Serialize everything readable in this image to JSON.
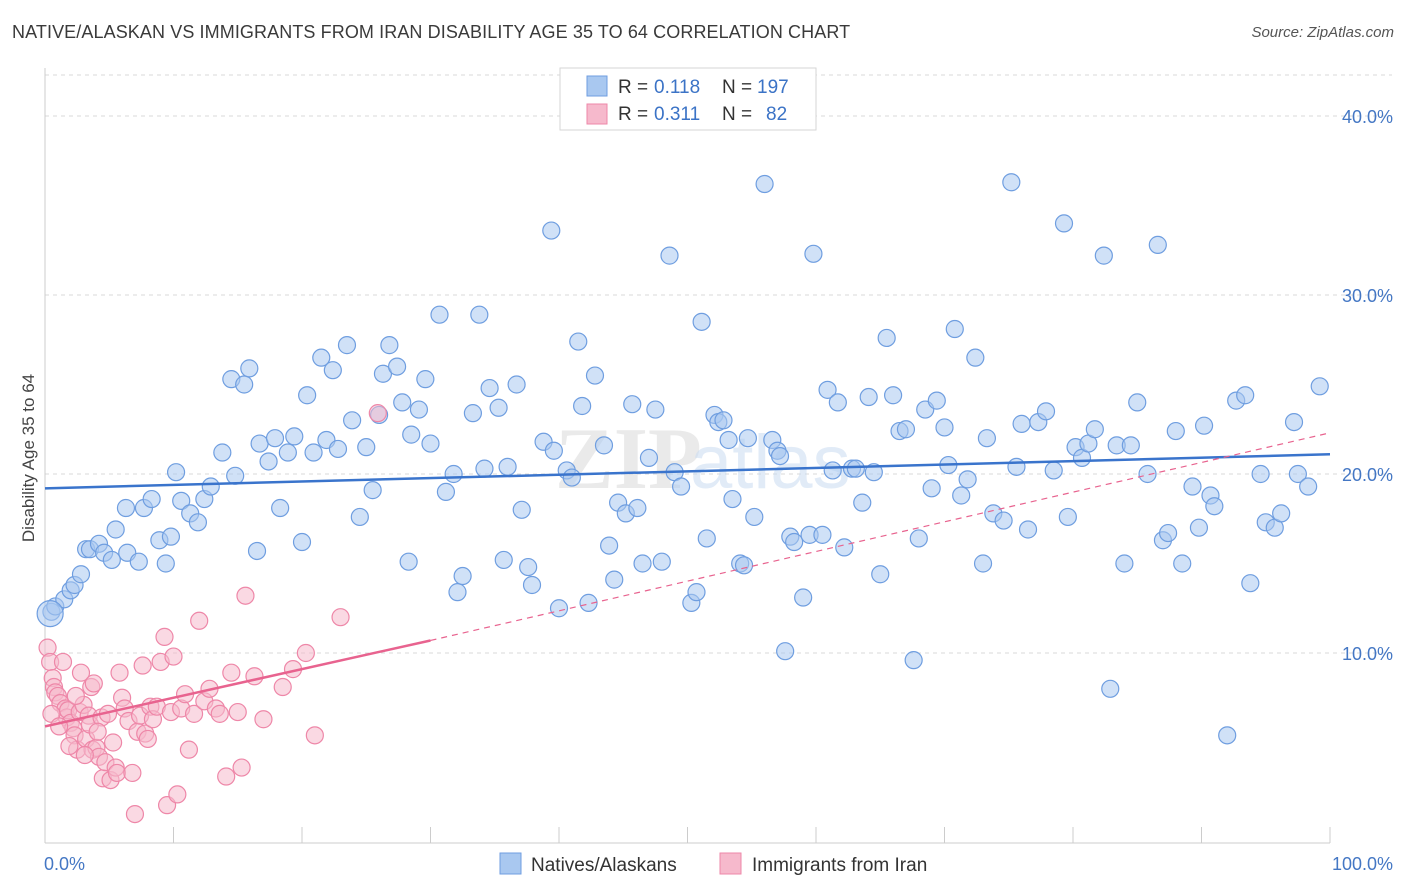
{
  "title": "NATIVE/ALASKAN VS IMMIGRANTS FROM IRAN DISABILITY AGE 35 TO 64 CORRELATION CHART",
  "source": "Source: ZipAtlas.com",
  "watermark": "ZIPatlas",
  "legend": {
    "rows": [
      {
        "r_label": "R = ",
        "r_value": "0.118",
        "n_label": "N = ",
        "n_value": "197"
      },
      {
        "r_label": "R = ",
        "r_value": "0.311",
        "n_label": "N = ",
        "n_value": "82"
      }
    ]
  },
  "chart_data": {
    "type": "scatter",
    "title": "NATIVE/ALASKAN VS IMMIGRANTS FROM IRAN DISABILITY AGE 35 TO 64 CORRELATION CHART",
    "xlabel": "",
    "ylabel": "Disability Age 35 to 64",
    "xlim": [
      0,
      100
    ],
    "ylim": [
      0,
      42
    ],
    "x_tick_labels": [
      "0.0%",
      "100.0%"
    ],
    "y_ticks": [
      10,
      20,
      30,
      40
    ],
    "y_tick_labels": [
      "10.0%",
      "20.0%",
      "30.0%",
      "40.0%"
    ],
    "grid": true,
    "legend_position": "top-center",
    "colors": {
      "natives_fill": "#a9c8f0",
      "natives_stroke": "#6f9ee0",
      "natives_line": "#3a74cc",
      "iran_fill": "#f6b9cc",
      "iran_stroke": "#ee87a8",
      "iran_line": "#e8638f",
      "grid": "#d8d8d8",
      "tick_text": "#4477c4"
    },
    "series": [
      {
        "name": "Natives/Alaskans",
        "r": 0.118,
        "n": 197,
        "trend": {
          "x": [
            0,
            100
          ],
          "y": [
            19.2,
            21.1
          ],
          "dashed": false
        },
        "points": [
          [
            0.5,
            12.3
          ],
          [
            0.8,
            12.6
          ],
          [
            1.5,
            13.0
          ],
          [
            2.0,
            13.5
          ],
          [
            2.3,
            13.8
          ],
          [
            2.8,
            14.4
          ],
          [
            3.2,
            15.8
          ],
          [
            3.5,
            15.8
          ],
          [
            4.2,
            16.1
          ],
          [
            4.6,
            15.6
          ],
          [
            5.2,
            15.2
          ],
          [
            5.5,
            16.9
          ],
          [
            6.3,
            18.1
          ],
          [
            6.4,
            15.6
          ],
          [
            7.3,
            15.1
          ],
          [
            7.7,
            18.1
          ],
          [
            8.3,
            18.6
          ],
          [
            8.9,
            16.3
          ],
          [
            9.4,
            15.0
          ],
          [
            9.8,
            16.5
          ],
          [
            10.2,
            20.1
          ],
          [
            10.6,
            18.5
          ],
          [
            11.3,
            17.8
          ],
          [
            11.9,
            17.3
          ],
          [
            12.4,
            18.6
          ],
          [
            12.9,
            19.3
          ],
          [
            13.8,
            21.2
          ],
          [
            14.5,
            25.3
          ],
          [
            14.8,
            19.9
          ],
          [
            15.5,
            25.0
          ],
          [
            15.9,
            25.9
          ],
          [
            16.5,
            15.7
          ],
          [
            16.7,
            21.7
          ],
          [
            17.4,
            20.7
          ],
          [
            17.9,
            22.0
          ],
          [
            18.3,
            18.1
          ],
          [
            18.9,
            21.2
          ],
          [
            19.4,
            22.1
          ],
          [
            20.0,
            16.2
          ],
          [
            20.4,
            24.4
          ],
          [
            20.9,
            21.2
          ],
          [
            21.5,
            26.5
          ],
          [
            21.9,
            21.9
          ],
          [
            22.4,
            25.8
          ],
          [
            22.8,
            21.4
          ],
          [
            23.5,
            27.2
          ],
          [
            23.9,
            23.0
          ],
          [
            24.5,
            17.6
          ],
          [
            25.0,
            21.5
          ],
          [
            25.5,
            19.1
          ],
          [
            26.0,
            23.3
          ],
          [
            26.3,
            25.6
          ],
          [
            26.8,
            27.2
          ],
          [
            27.4,
            26.0
          ],
          [
            27.8,
            24.0
          ],
          [
            28.3,
            15.1
          ],
          [
            28.5,
            22.2
          ],
          [
            29.1,
            23.6
          ],
          [
            29.6,
            25.3
          ],
          [
            30.0,
            21.7
          ],
          [
            30.7,
            28.9
          ],
          [
            31.2,
            19.0
          ],
          [
            31.8,
            20.0
          ],
          [
            32.1,
            13.4
          ],
          [
            32.5,
            14.3
          ],
          [
            33.3,
            23.4
          ],
          [
            33.8,
            28.9
          ],
          [
            34.2,
            20.3
          ],
          [
            34.6,
            24.8
          ],
          [
            35.3,
            23.7
          ],
          [
            35.7,
            15.2
          ],
          [
            36.0,
            20.4
          ],
          [
            36.7,
            25.0
          ],
          [
            37.1,
            18.0
          ],
          [
            37.6,
            14.8
          ],
          [
            37.9,
            13.8
          ],
          [
            38.8,
            21.8
          ],
          [
            39.4,
            33.6
          ],
          [
            39.6,
            21.3
          ],
          [
            40.0,
            12.5
          ],
          [
            40.6,
            20.2
          ],
          [
            41.0,
            19.8
          ],
          [
            41.5,
            27.4
          ],
          [
            41.8,
            23.8
          ],
          [
            42.3,
            12.8
          ],
          [
            42.8,
            25.5
          ],
          [
            43.5,
            21.6
          ],
          [
            43.9,
            16.0
          ],
          [
            44.3,
            14.1
          ],
          [
            44.6,
            18.4
          ],
          [
            45.2,
            17.8
          ],
          [
            45.7,
            23.9
          ],
          [
            46.1,
            18.1
          ],
          [
            46.5,
            15.0
          ],
          [
            47.0,
            20.9
          ],
          [
            47.5,
            23.6
          ],
          [
            48.0,
            15.1
          ],
          [
            48.6,
            32.2
          ],
          [
            49.0,
            20.1
          ],
          [
            49.5,
            19.3
          ],
          [
            50.3,
            12.8
          ],
          [
            50.7,
            13.4
          ],
          [
            51.1,
            28.5
          ],
          [
            51.5,
            16.4
          ],
          [
            52.1,
            23.3
          ],
          [
            52.4,
            22.9
          ],
          [
            52.8,
            23.0
          ],
          [
            53.2,
            21.9
          ],
          [
            53.5,
            18.6
          ],
          [
            54.1,
            15.0
          ],
          [
            54.4,
            14.9
          ],
          [
            54.7,
            22.0
          ],
          [
            55.2,
            17.6
          ],
          [
            56.0,
            36.2
          ],
          [
            56.6,
            21.9
          ],
          [
            57.0,
            21.3
          ],
          [
            57.2,
            21.0
          ],
          [
            57.6,
            10.1
          ],
          [
            58.0,
            16.5
          ],
          [
            58.3,
            16.2
          ],
          [
            59.0,
            13.1
          ],
          [
            59.5,
            16.6
          ],
          [
            59.8,
            32.3
          ],
          [
            60.5,
            16.6
          ],
          [
            60.9,
            24.7
          ],
          [
            61.3,
            20.2
          ],
          [
            61.7,
            24.0
          ],
          [
            62.2,
            15.9
          ],
          [
            62.8,
            20.3
          ],
          [
            63.1,
            20.3
          ],
          [
            63.6,
            18.4
          ],
          [
            64.1,
            24.3
          ],
          [
            64.5,
            20.1
          ],
          [
            65.0,
            14.4
          ],
          [
            65.5,
            27.6
          ],
          [
            66.0,
            24.4
          ],
          [
            66.5,
            22.4
          ],
          [
            67.0,
            22.5
          ],
          [
            67.6,
            9.6
          ],
          [
            68.0,
            16.4
          ],
          [
            68.5,
            23.6
          ],
          [
            69.0,
            19.2
          ],
          [
            69.4,
            24.1
          ],
          [
            70.0,
            22.6
          ],
          [
            70.3,
            20.5
          ],
          [
            70.8,
            28.1
          ],
          [
            71.3,
            18.8
          ],
          [
            71.8,
            19.7
          ],
          [
            72.4,
            26.5
          ],
          [
            73.0,
            15.0
          ],
          [
            73.3,
            22.0
          ],
          [
            73.8,
            17.8
          ],
          [
            74.6,
            17.4
          ],
          [
            75.2,
            36.3
          ],
          [
            75.6,
            20.4
          ],
          [
            76.0,
            22.8
          ],
          [
            76.5,
            16.9
          ],
          [
            77.3,
            22.9
          ],
          [
            77.9,
            23.5
          ],
          [
            78.5,
            20.2
          ],
          [
            79.3,
            34.0
          ],
          [
            79.6,
            17.6
          ],
          [
            80.2,
            21.5
          ],
          [
            80.7,
            20.9
          ],
          [
            81.2,
            21.7
          ],
          [
            81.7,
            22.5
          ],
          [
            82.4,
            32.2
          ],
          [
            82.9,
            8.0
          ],
          [
            83.4,
            21.6
          ],
          [
            84.0,
            15.0
          ],
          [
            84.5,
            21.6
          ],
          [
            85.0,
            24.0
          ],
          [
            85.8,
            20.0
          ],
          [
            86.6,
            32.8
          ],
          [
            87.0,
            16.3
          ],
          [
            87.4,
            16.7
          ],
          [
            88.0,
            22.4
          ],
          [
            88.5,
            15.0
          ],
          [
            89.3,
            19.3
          ],
          [
            89.8,
            17.0
          ],
          [
            90.2,
            22.7
          ],
          [
            90.7,
            18.8
          ],
          [
            91.0,
            18.2
          ],
          [
            92.0,
            5.4
          ],
          [
            92.7,
            24.1
          ],
          [
            93.4,
            24.4
          ],
          [
            93.8,
            13.9
          ],
          [
            94.6,
            20.0
          ],
          [
            95.0,
            17.3
          ],
          [
            95.7,
            17.0
          ],
          [
            96.2,
            17.8
          ],
          [
            97.2,
            22.9
          ],
          [
            97.5,
            20.0
          ],
          [
            98.3,
            19.3
          ],
          [
            99.2,
            24.9
          ]
        ]
      },
      {
        "name": "Immigrants from Iran",
        "r": 0.311,
        "n": 82,
        "trend": {
          "x": [
            0,
            30
          ],
          "y": [
            5.9,
            10.7
          ],
          "dashed": false
        },
        "trend_extension": {
          "x": [
            30,
            100
          ],
          "y": [
            10.7,
            22.3
          ],
          "dashed": true
        },
        "points": [
          [
            0.2,
            10.3
          ],
          [
            0.4,
            9.5
          ],
          [
            0.6,
            8.6
          ],
          [
            0.7,
            8.1
          ],
          [
            0.8,
            7.8
          ],
          [
            1.0,
            7.6
          ],
          [
            1.2,
            7.2
          ],
          [
            1.4,
            9.5
          ],
          [
            1.6,
            6.9
          ],
          [
            1.7,
            6.4
          ],
          [
            1.8,
            6.8
          ],
          [
            2.0,
            6.1
          ],
          [
            2.2,
            5.8
          ],
          [
            2.3,
            5.4
          ],
          [
            2.5,
            4.6
          ],
          [
            2.7,
            6.7
          ],
          [
            2.8,
            8.9
          ],
          [
            3.0,
            7.1
          ],
          [
            3.2,
            5.2
          ],
          [
            3.4,
            6.5
          ],
          [
            3.5,
            6.0
          ],
          [
            3.6,
            8.1
          ],
          [
            3.7,
            4.6
          ],
          [
            3.8,
            8.3
          ],
          [
            4.0,
            4.7
          ],
          [
            4.2,
            4.2
          ],
          [
            4.4,
            6.4
          ],
          [
            4.5,
            3.0
          ],
          [
            4.7,
            3.9
          ],
          [
            4.9,
            6.6
          ],
          [
            5.1,
            2.9
          ],
          [
            5.3,
            5.0
          ],
          [
            5.5,
            3.6
          ],
          [
            5.6,
            3.3
          ],
          [
            5.8,
            8.9
          ],
          [
            6.0,
            7.5
          ],
          [
            6.2,
            6.9
          ],
          [
            6.5,
            6.2
          ],
          [
            6.8,
            3.3
          ],
          [
            7.0,
            1.0
          ],
          [
            7.2,
            5.6
          ],
          [
            7.4,
            6.5
          ],
          [
            7.6,
            9.3
          ],
          [
            7.8,
            5.5
          ],
          [
            8.0,
            5.2
          ],
          [
            8.2,
            7.0
          ],
          [
            8.4,
            6.3
          ],
          [
            8.7,
            7.0
          ],
          [
            9.0,
            9.5
          ],
          [
            9.3,
            10.9
          ],
          [
            9.5,
            1.5
          ],
          [
            9.8,
            6.7
          ],
          [
            10.0,
            9.8
          ],
          [
            10.3,
            2.1
          ],
          [
            10.6,
            6.9
          ],
          [
            10.9,
            7.7
          ],
          [
            11.2,
            4.6
          ],
          [
            11.6,
            6.6
          ],
          [
            12.0,
            11.8
          ],
          [
            12.4,
            7.3
          ],
          [
            12.8,
            8.0
          ],
          [
            13.3,
            6.9
          ],
          [
            13.6,
            6.6
          ],
          [
            14.1,
            3.1
          ],
          [
            14.5,
            8.9
          ],
          [
            15.0,
            6.7
          ],
          [
            15.3,
            3.6
          ],
          [
            15.6,
            13.2
          ],
          [
            16.3,
            8.7
          ],
          [
            17.0,
            6.3
          ],
          [
            18.5,
            8.1
          ],
          [
            19.3,
            9.1
          ],
          [
            20.3,
            10.0
          ],
          [
            21.0,
            5.4
          ],
          [
            23.0,
            12.0
          ],
          [
            25.9,
            23.4
          ],
          [
            0.5,
            6.6
          ],
          [
            1.1,
            5.9
          ],
          [
            1.9,
            4.8
          ],
          [
            2.4,
            7.6
          ],
          [
            3.1,
            4.3
          ],
          [
            4.1,
            5.6
          ]
        ]
      }
    ]
  },
  "bottom_legend": {
    "items": [
      {
        "label": "Natives/Alaskans"
      },
      {
        "label": "Immigrants from Iran"
      }
    ]
  }
}
